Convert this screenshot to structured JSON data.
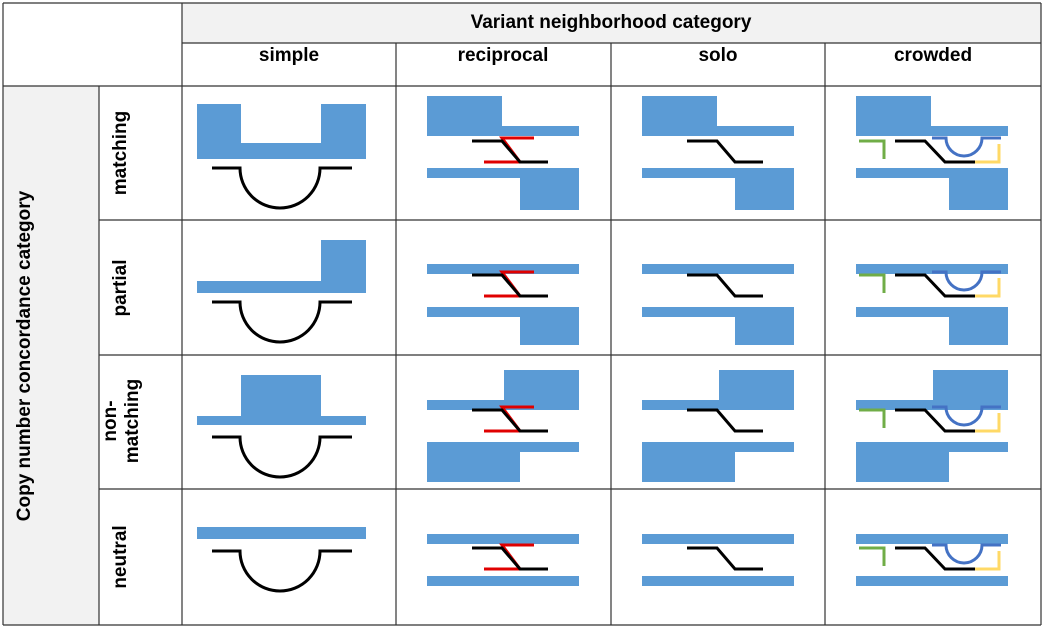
{
  "header": {
    "top_title": "Variant neighborhood category",
    "side_title": "Copy number concordance category"
  },
  "columns": [
    {
      "key": "simple",
      "label": "simple"
    },
    {
      "key": "reciprocal",
      "label": "reciprocal"
    },
    {
      "key": "solo",
      "label": "solo"
    },
    {
      "key": "crowded",
      "label": "crowded"
    }
  ],
  "rows": [
    {
      "key": "matching",
      "label_lines": [
        "matching"
      ]
    },
    {
      "key": "partial",
      "label_lines": [
        "partial"
      ]
    },
    {
      "key": "non-matching",
      "label_lines": [
        "non-",
        "matching"
      ]
    },
    {
      "key": "neutral",
      "label_lines": [
        "neutral"
      ]
    }
  ],
  "colors": {
    "copy_number": "#5b9bd5",
    "variant": "#000000",
    "reciprocal_variant": "#e00000",
    "neighbor_green": "#70ad47",
    "neighbor_blue": "#4472c4",
    "neighbor_yellow": "#ffd966",
    "header_bg": "#f2f2f2",
    "grid": "#333333"
  }
}
